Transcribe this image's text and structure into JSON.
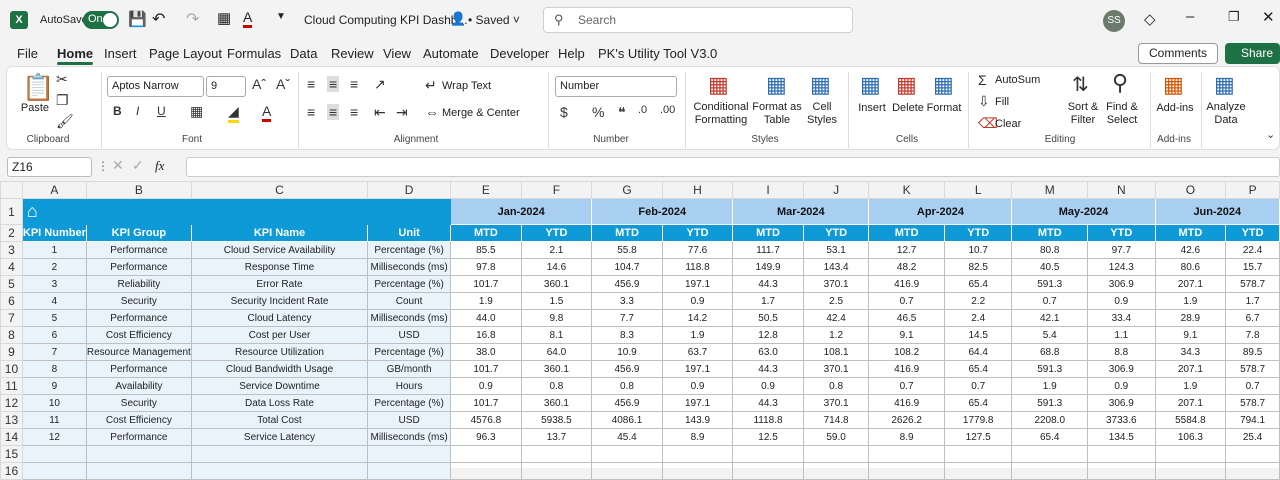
{
  "app": {
    "autosave_label": "AutoSave",
    "autosave_state": "On",
    "doc_title": "Cloud Computing KPI Dashb...",
    "saved_status": "Saved",
    "search_placeholder": "Search",
    "user_initials": "SS"
  },
  "menu": [
    "File",
    "Home",
    "Insert",
    "Page Layout",
    "Formulas",
    "Data",
    "Review",
    "View",
    "Automate",
    "Developer",
    "Help",
    "PK's Utility Tool V3.0"
  ],
  "menu_right": {
    "comments": "Comments",
    "share": "Share"
  },
  "ribbon": {
    "clipboard": {
      "paste": "Paste",
      "group": "Clipboard"
    },
    "font": {
      "name": "Aptos Narrow",
      "size": "9",
      "group": "Font"
    },
    "alignment": {
      "wrap": "Wrap Text",
      "merge": "Merge & Center",
      "group": "Alignment"
    },
    "number": {
      "format": "Number",
      "group": "Number"
    },
    "styles": {
      "cond1": "Conditional",
      "cond2": "Formatting",
      "fmt1": "Format as",
      "fmt2": "Table",
      "cell1": "Cell",
      "cell2": "Styles",
      "group": "Styles"
    },
    "cells": {
      "insert": "Insert",
      "delete": "Delete",
      "format": "Format",
      "group": "Cells"
    },
    "editing": {
      "autosum": "AutoSum",
      "fill": "Fill",
      "clear": "Clear",
      "sort1": "Sort &",
      "sort2": "Filter",
      "find1": "Find &",
      "find2": "Select",
      "group": "Editing"
    },
    "addins": {
      "label": "Add-ins",
      "group": "Add-ins"
    },
    "analyze": {
      "l1": "Analyze",
      "l2": "Data"
    }
  },
  "formula_bar": {
    "cell_ref": "Z16",
    "fx": "fx",
    "value": ""
  },
  "columns": [
    "A",
    "B",
    "C",
    "D",
    "E",
    "F",
    "G",
    "H",
    "I",
    "J",
    "K",
    "L",
    "M",
    "N",
    "O",
    "P"
  ],
  "months": [
    "Jan-2024",
    "Feb-2024",
    "Mar-2024",
    "Apr-2024",
    "May-2024",
    "Jun-2024"
  ],
  "headers": [
    "KPI Number",
    "KPI Group",
    "KPI Name",
    "Unit",
    "MTD",
    "YTD",
    "MTD",
    "YTD",
    "MTD",
    "YTD",
    "MTD",
    "YTD",
    "MTD",
    "YTD",
    "MTD",
    "YTD"
  ],
  "rows": [
    [
      "1",
      "Performance",
      "Cloud Service Availability",
      "Percentage (%)",
      "85.5",
      "2.1",
      "55.8",
      "77.6",
      "111.7",
      "53.1",
      "12.7",
      "10.7",
      "80.8",
      "97.7",
      "42.6",
      "22.4"
    ],
    [
      "2",
      "Performance",
      "Response Time",
      "Milliseconds (ms)",
      "97.8",
      "14.6",
      "104.7",
      "118.8",
      "149.9",
      "143.4",
      "48.2",
      "82.5",
      "40.5",
      "124.3",
      "80.6",
      "15.7"
    ],
    [
      "3",
      "Reliability",
      "Error Rate",
      "Percentage (%)",
      "101.7",
      "360.1",
      "456.9",
      "197.1",
      "44.3",
      "370.1",
      "416.9",
      "65.4",
      "591.3",
      "306.9",
      "207.1",
      "578.7"
    ],
    [
      "4",
      "Security",
      "Security Incident Rate",
      "Count",
      "1.9",
      "1.5",
      "3.3",
      "0.9",
      "1.7",
      "2.5",
      "0.7",
      "2.2",
      "0.7",
      "0.9",
      "1.9",
      "1.7"
    ],
    [
      "5",
      "Performance",
      "Cloud Latency",
      "Milliseconds (ms)",
      "44.0",
      "9.8",
      "7.7",
      "14.2",
      "50.5",
      "42.4",
      "46.5",
      "2.4",
      "42.1",
      "33.4",
      "28.9",
      "6.7"
    ],
    [
      "6",
      "Cost Efficiency",
      "Cost per User",
      "USD",
      "16.8",
      "8.1",
      "8.3",
      "1.9",
      "12.8",
      "1.2",
      "9.1",
      "14.5",
      "5.4",
      "1.1",
      "9.1",
      "7.8"
    ],
    [
      "7",
      "Resource Management",
      "Resource Utilization",
      "Percentage (%)",
      "38.0",
      "64.0",
      "10.9",
      "63.7",
      "63.0",
      "108.1",
      "108.2",
      "64.4",
      "68.8",
      "8.8",
      "34.3",
      "89.5"
    ],
    [
      "8",
      "Performance",
      "Cloud Bandwidth Usage",
      "GB/month",
      "101.7",
      "360.1",
      "456.9",
      "197.1",
      "44.3",
      "370.1",
      "416.9",
      "65.4",
      "591.3",
      "306.9",
      "207.1",
      "578.7"
    ],
    [
      "9",
      "Availability",
      "Service Downtime",
      "Hours",
      "0.9",
      "0.8",
      "0.8",
      "0.9",
      "0.9",
      "0.8",
      "0.7",
      "0.7",
      "1.9",
      "0.9",
      "1.9",
      "0.7"
    ],
    [
      "10",
      "Security",
      "Data Loss Rate",
      "Percentage (%)",
      "101.7",
      "360.1",
      "456.9",
      "197.1",
      "44.3",
      "370.1",
      "416.9",
      "65.4",
      "591.3",
      "306.9",
      "207.1",
      "578.7"
    ],
    [
      "11",
      "Cost Efficiency",
      "Total Cost",
      "USD",
      "4576.8",
      "5938.5",
      "4086.1",
      "143.9",
      "1118.8",
      "714.8",
      "2626.2",
      "1779.8",
      "2208.0",
      "3733.6",
      "5584.8",
      "794.1"
    ],
    [
      "12",
      "Performance",
      "Service Latency",
      "Milliseconds (ms)",
      "96.3",
      "13.7",
      "45.4",
      "8.9",
      "12.5",
      "59.0",
      "8.9",
      "127.5",
      "65.4",
      "134.5",
      "106.3",
      "25.4"
    ]
  ],
  "row_numbers": [
    "1",
    "2",
    "3",
    "4",
    "5",
    "6",
    "7",
    "8",
    "9",
    "10",
    "11",
    "12",
    "13",
    "14",
    "15",
    "16"
  ]
}
